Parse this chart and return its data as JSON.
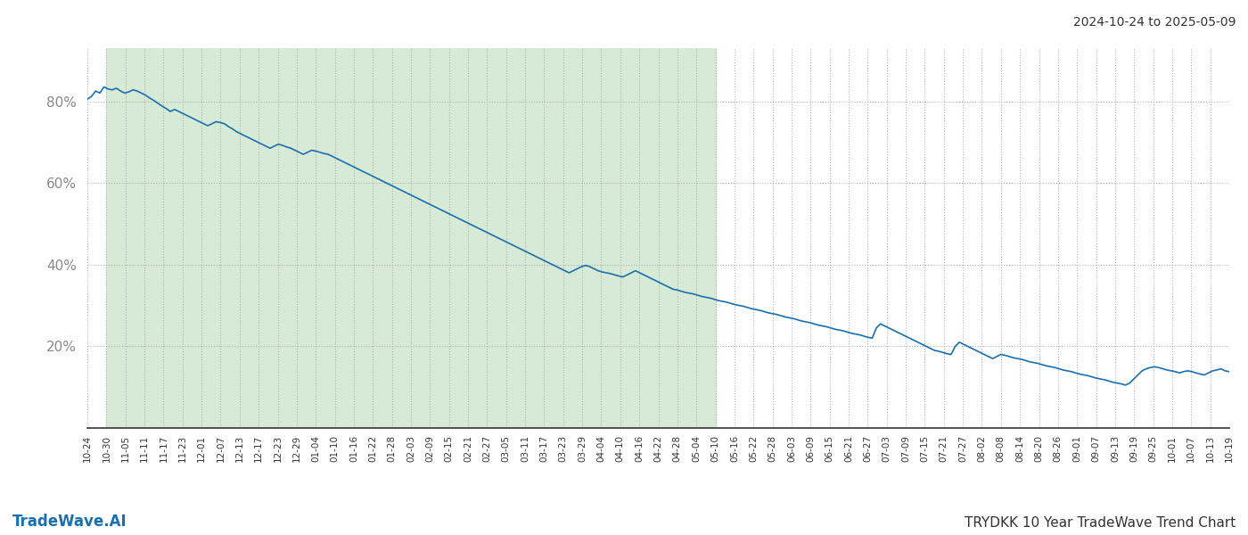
{
  "title_top_right": "2024-10-24 to 2025-05-09",
  "title_bottom_right": "TRYDKK 10 Year TradeWave Trend Chart",
  "title_bottom_left": "TradeWave.AI",
  "line_color": "#1a6faf",
  "line_width": 1.2,
  "bg_color": "#ffffff",
  "shaded_region_color": "#d6ead6",
  "yticks": [
    20,
    40,
    60,
    80
  ],
  "ylim": [
    0,
    93
  ],
  "xlabel_fontsize": 7.5,
  "xtick_rotation": 90,
  "grid_color": "#b0b0b0",
  "x_labels": [
    "10-24",
    "10-30",
    "11-05",
    "11-11",
    "11-17",
    "11-23",
    "12-01",
    "12-07",
    "12-13",
    "12-17",
    "12-23",
    "12-29",
    "01-04",
    "01-10",
    "01-16",
    "01-22",
    "01-28",
    "02-03",
    "02-09",
    "02-15",
    "02-21",
    "02-27",
    "03-05",
    "03-11",
    "03-17",
    "03-23",
    "03-29",
    "04-04",
    "04-10",
    "04-16",
    "04-22",
    "04-28",
    "05-04",
    "05-10",
    "05-16",
    "05-22",
    "05-28",
    "06-03",
    "06-09",
    "06-15",
    "06-21",
    "06-27",
    "07-03",
    "07-09",
    "07-15",
    "07-21",
    "07-27",
    "08-02",
    "08-08",
    "08-14",
    "08-20",
    "08-26",
    "09-01",
    "09-07",
    "09-13",
    "09-19",
    "09-25",
    "10-01",
    "10-07",
    "10-13",
    "10-19"
  ],
  "shaded_end_label": "05-10",
  "y_values": [
    80.5,
    81.2,
    82.5,
    82.0,
    83.5,
    83.0,
    82.8,
    83.2,
    82.5,
    82.0,
    82.3,
    82.8,
    82.5,
    82.0,
    81.5,
    80.8,
    80.2,
    79.5,
    78.8,
    78.2,
    77.5,
    78.0,
    77.5,
    77.0,
    76.5,
    76.0,
    75.5,
    75.0,
    74.5,
    74.0,
    74.5,
    75.0,
    74.8,
    74.5,
    73.8,
    73.2,
    72.5,
    72.0,
    71.5,
    71.0,
    70.5,
    70.0,
    69.5,
    69.0,
    68.5,
    69.0,
    69.5,
    69.2,
    68.8,
    68.5,
    68.0,
    67.5,
    67.0,
    67.5,
    68.0,
    67.8,
    67.5,
    67.2,
    67.0,
    66.5,
    66.0,
    65.5,
    65.0,
    64.5,
    64.0,
    63.5,
    63.0,
    62.5,
    62.0,
    61.5,
    61.0,
    60.5,
    60.0,
    59.5,
    59.0,
    58.5,
    58.0,
    57.5,
    57.0,
    56.5,
    56.0,
    55.5,
    55.0,
    54.5,
    54.0,
    53.5,
    53.0,
    52.5,
    52.0,
    51.5,
    51.0,
    50.5,
    50.0,
    49.5,
    49.0,
    48.5,
    48.0,
    47.5,
    47.0,
    46.5,
    46.0,
    45.5,
    45.0,
    44.5,
    44.0,
    43.5,
    43.0,
    42.5,
    42.0,
    41.5,
    41.0,
    40.5,
    40.0,
    39.5,
    39.0,
    38.5,
    38.0,
    38.5,
    39.0,
    39.5,
    39.8,
    39.5,
    39.0,
    38.5,
    38.2,
    38.0,
    37.8,
    37.5,
    37.2,
    37.0,
    37.5,
    38.0,
    38.5,
    38.0,
    37.5,
    37.0,
    36.5,
    36.0,
    35.5,
    35.0,
    34.5,
    34.0,
    33.8,
    33.5,
    33.2,
    33.0,
    32.8,
    32.5,
    32.2,
    32.0,
    31.8,
    31.5,
    31.2,
    31.0,
    30.8,
    30.5,
    30.2,
    30.0,
    29.8,
    29.5,
    29.2,
    29.0,
    28.8,
    28.5,
    28.2,
    28.0,
    27.8,
    27.5,
    27.2,
    27.0,
    26.8,
    26.5,
    26.2,
    26.0,
    25.8,
    25.5,
    25.2,
    25.0,
    24.8,
    24.5,
    24.2,
    24.0,
    23.8,
    23.5,
    23.2,
    23.0,
    22.8,
    22.5,
    22.2,
    22.0,
    24.5,
    25.5,
    25.0,
    24.5,
    24.0,
    23.5,
    23.0,
    22.5,
    22.0,
    21.5,
    21.0,
    20.5,
    20.0,
    19.5,
    19.0,
    18.8,
    18.5,
    18.2,
    18.0,
    20.0,
    21.0,
    20.5,
    20.0,
    19.5,
    19.0,
    18.5,
    18.0,
    17.5,
    17.0,
    17.5,
    18.0,
    17.8,
    17.5,
    17.2,
    17.0,
    16.8,
    16.5,
    16.2,
    16.0,
    15.8,
    15.5,
    15.2,
    15.0,
    14.8,
    14.5,
    14.2,
    14.0,
    13.8,
    13.5,
    13.2,
    13.0,
    12.8,
    12.5,
    12.2,
    12.0,
    11.8,
    11.5,
    11.2,
    11.0,
    10.8,
    10.5,
    11.0,
    12.0,
    13.0,
    14.0,
    14.5,
    14.8,
    15.0,
    14.8,
    14.5,
    14.2,
    14.0,
    13.8,
    13.5,
    13.8,
    14.0,
    13.8,
    13.5,
    13.2,
    13.0,
    13.5,
    14.0,
    14.2,
    14.5,
    14.0,
    13.8
  ]
}
